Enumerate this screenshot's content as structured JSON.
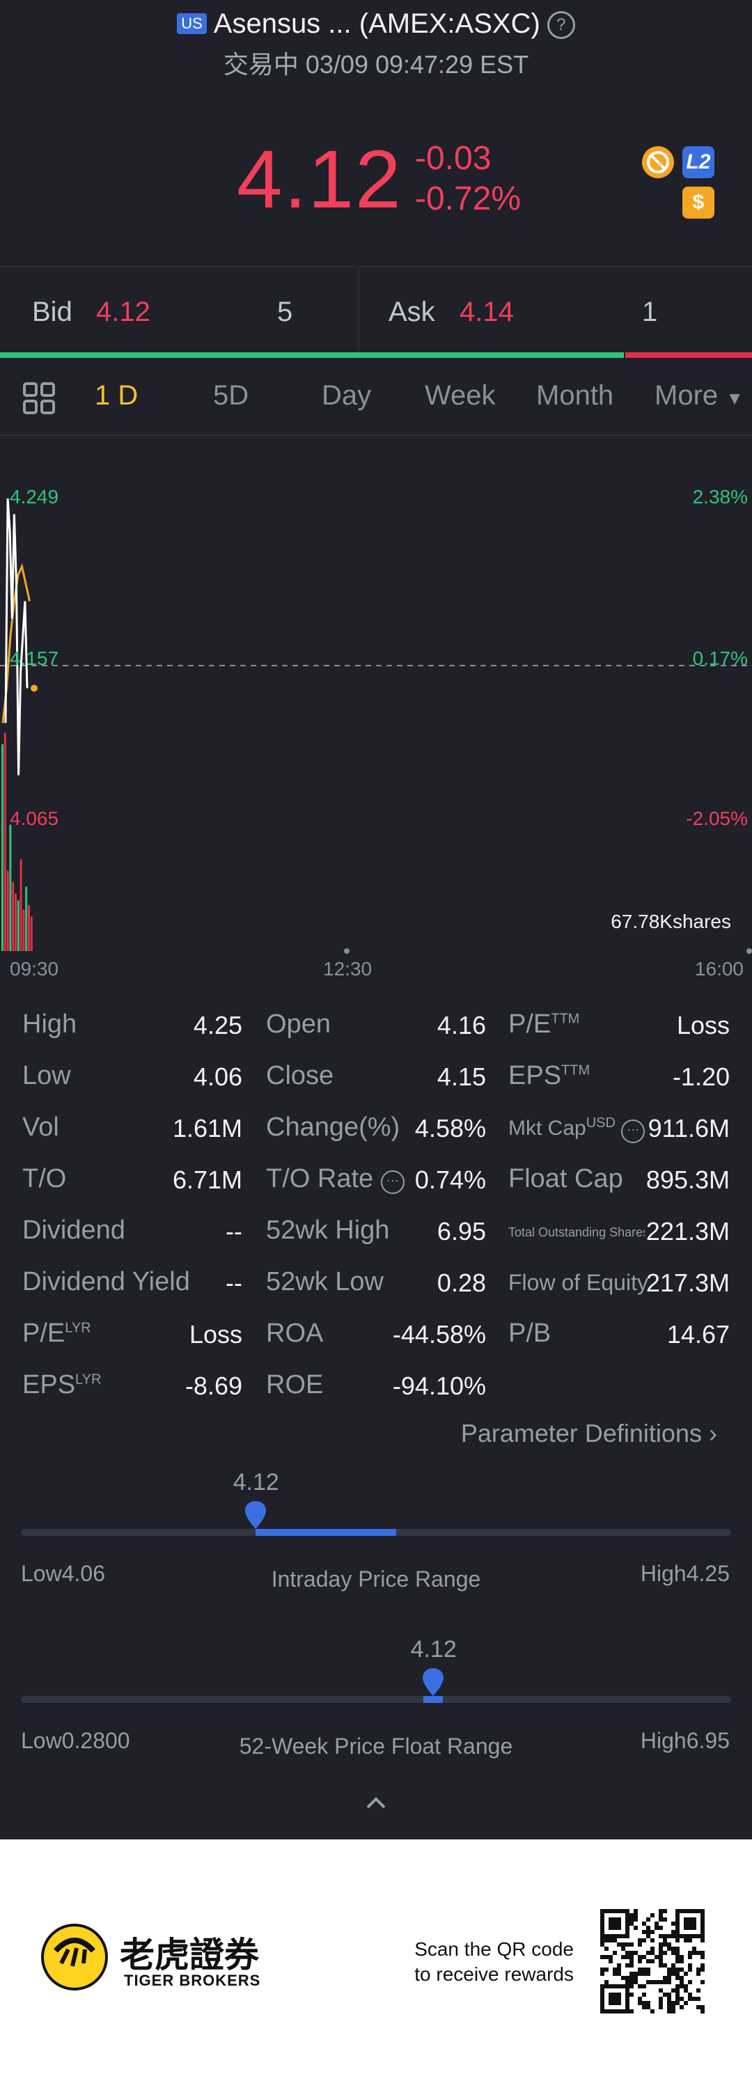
{
  "header": {
    "market_badge": "US",
    "title": "Asensus ... (AMEX:ASXC)",
    "status_line": "交易中 03/09 09:47:29 EST"
  },
  "quote": {
    "price": "4.12",
    "change": "-0.03",
    "change_pct": "-0.72%",
    "level_badge": "L2",
    "dollar_badge": "$",
    "price_color": "#f23f5a"
  },
  "bid_ask": {
    "bid_label": "Bid",
    "bid_price": "4.12",
    "bid_qty": "5",
    "ask_label": "Ask",
    "ask_price": "4.14",
    "ask_qty": "1",
    "bid_ratio": 0.83
  },
  "tabs": {
    "items": [
      "1 D",
      "5D",
      "Day",
      "Week",
      "Month",
      "More"
    ],
    "active": "1 D"
  },
  "chart_data": {
    "type": "line",
    "y_left_ticks": [
      "4.249",
      "4.157",
      "4.065"
    ],
    "y_right_ticks": [
      "2.38%",
      "0.17%",
      "-2.05%"
    ],
    "x_ticks": [
      "09:30",
      "12:30",
      "16:00"
    ],
    "volume_label": "67.78Kshares",
    "ylim": [
      4.065,
      4.249
    ],
    "prev_close_line": 4.157,
    "series": [
      {
        "values": [
          4.12,
          4.249,
          4.23,
          4.18,
          4.24,
          4.2,
          4.09,
          4.15,
          4.17,
          4.19,
          4.14
        ]
      },
      {
        "values": [
          4.12,
          4.14,
          4.17,
          4.19,
          4.205,
          4.21,
          4.2,
          4.19
        ]
      }
    ],
    "volume": [
      0.9,
      0.95,
      0.35,
      0.55,
      0.3,
      0.25,
      0.22,
      0.4,
      0.18,
      0.28,
      0.2,
      0.15
    ],
    "colors": {
      "price": "#ffffff",
      "avg": "#f5a623",
      "up": "#2fc47c",
      "down": "#e03048"
    }
  },
  "stats": {
    "col1": [
      {
        "label": "High",
        "value": "4.25"
      },
      {
        "label": "Low",
        "value": "4.06"
      },
      {
        "label": "Vol",
        "value": "1.61M"
      },
      {
        "label": "T/O",
        "value": "6.71M"
      },
      {
        "label": "Dividend",
        "value": "--"
      },
      {
        "label": "Dividend Yield",
        "value": "--"
      },
      {
        "label": "P/E",
        "sup": "LYR",
        "value": "Loss"
      },
      {
        "label": "EPS",
        "sup": "LYR",
        "value": "-8.69"
      }
    ],
    "col2": [
      {
        "label": "Open",
        "value": "4.16"
      },
      {
        "label": "Close",
        "value": "4.15"
      },
      {
        "label": "Change(%)",
        "value": "4.58%"
      },
      {
        "label": "T/O Rate",
        "value": "0.74%"
      },
      {
        "label": "52wk High",
        "value": "6.95"
      },
      {
        "label": "52wk Low",
        "value": "0.28"
      },
      {
        "label": "ROA",
        "value": "-44.58%"
      },
      {
        "label": "ROE",
        "value": "-94.10%"
      }
    ],
    "col3": [
      {
        "label": "P/E",
        "sup": "TTM",
        "value": "Loss"
      },
      {
        "label": "EPS",
        "sup": "TTM",
        "value": "-1.20"
      },
      {
        "label": "Mkt Cap",
        "sup": "USD",
        "value": "911.6M"
      },
      {
        "label": "Float Cap",
        "value": "895.3M"
      },
      {
        "label": "Total Outstanding Shares",
        "value": "221.3M"
      },
      {
        "label": "Flow of Equity",
        "value": "217.3M"
      },
      {
        "label": "P/B",
        "value": "14.67"
      }
    ],
    "param_defs": "Parameter Definitions"
  },
  "intraday_range": {
    "current": "4.12",
    "low_label": "Low",
    "low": "4.06",
    "high_label": "High",
    "high": "4.25",
    "title": "Intraday Price Range",
    "position": 0.33
  },
  "week52_range": {
    "current": "4.12",
    "low_label": "Low",
    "low": "0.2800",
    "high_label": "High",
    "high": "6.95",
    "title": "52-Week Price Float Range",
    "position": 0.58
  },
  "footer": {
    "brand_cn": "老虎證券",
    "brand_en": "TIGER BROKERS",
    "scan_line1": "Scan the QR code",
    "scan_line2": "to receive rewards"
  }
}
